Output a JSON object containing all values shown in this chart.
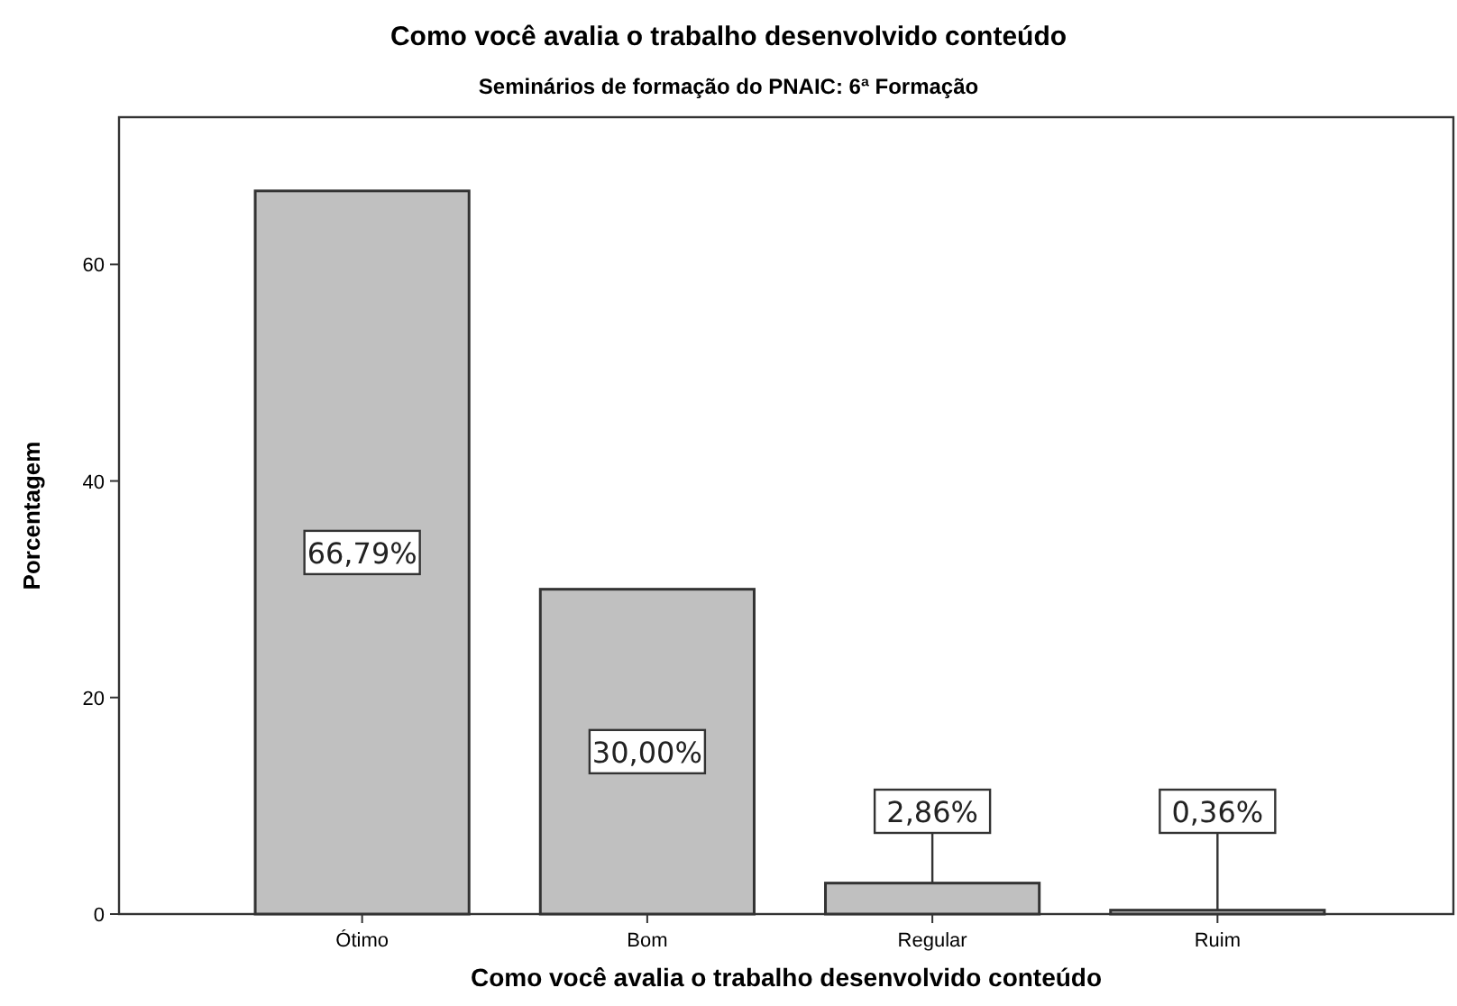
{
  "chart_data": {
    "type": "bar",
    "title": "Como você avalia o trabalho desenvolvido conteúdo",
    "subtitle": "Seminários de formação do PNAIC: 6ª Formação",
    "xlabel": "Como você avalia o trabalho desenvolvido conteúdo",
    "ylabel": "Porcentagem",
    "categories": [
      "Ótimo",
      "Bom",
      "Regular",
      "Ruim"
    ],
    "values": [
      66.79,
      30.0,
      2.86,
      0.36
    ],
    "value_labels": [
      "66,79%",
      "30,00%",
      "2,86%",
      "0,36%"
    ],
    "color": "#c0c0c0",
    "ylim": [
      0,
      73.6
    ],
    "yticks": [
      0,
      20,
      40,
      60
    ],
    "grid": false
  }
}
